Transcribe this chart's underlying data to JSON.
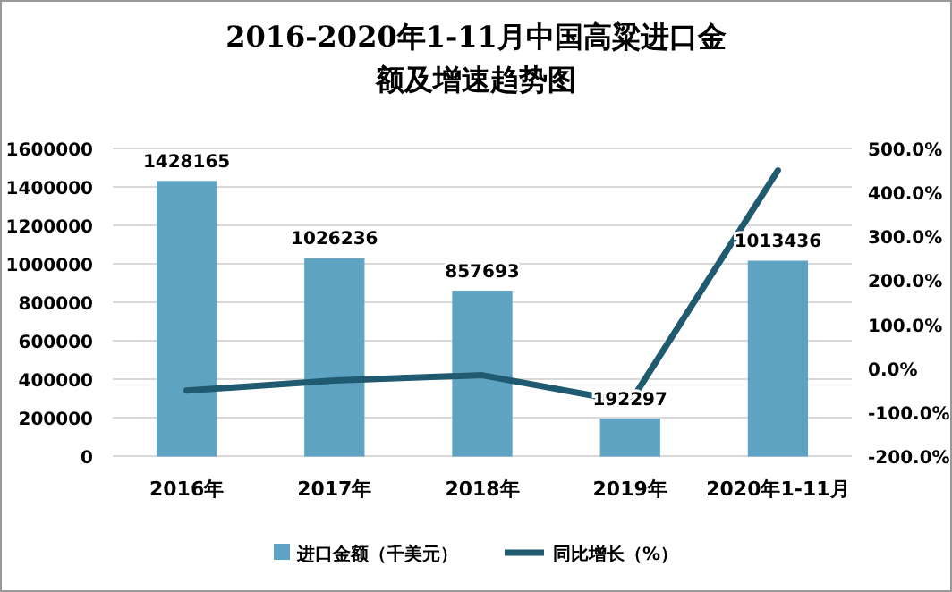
{
  "chart_data": {
    "type": "bar",
    "title": "2016-2020年1-11月中国高粱进口金额及增速趋势图",
    "categories": [
      "2016年",
      "2017年",
      "2018年",
      "2019年",
      "2020年1-11月"
    ],
    "series": [
      {
        "name": "进口金额（千美元）",
        "color": "#5fa3c2",
        "values": [
          1428165,
          1026236,
          857693,
          192297,
          1013436
        ],
        "value_labels": [
          "1428165",
          "1026236",
          "857693",
          "192297",
          "1013436"
        ]
      },
      {
        "name": "同比增长（%）",
        "type": "line",
        "axis": "y2",
        "color": "#1f5a70",
        "values": [
          -51,
          -28,
          -16,
          -78,
          450
        ]
      }
    ],
    "ylim": [
      0,
      1600000
    ],
    "yticks": [
      0,
      200000,
      400000,
      600000,
      800000,
      1000000,
      1200000,
      1400000,
      1600000
    ],
    "y2lim": [
      -200,
      500
    ],
    "y2ticks": [
      {
        "value": -200,
        "label": "-200.0%"
      },
      {
        "value": -100,
        "label": "-100.0%"
      },
      {
        "value": 0,
        "label": "0.0%"
      },
      {
        "value": 100,
        "label": "100.0%"
      },
      {
        "value": 200,
        "label": "200.0%"
      },
      {
        "value": 300,
        "label": "300.0%"
      },
      {
        "value": 400,
        "label": "400.0%"
      },
      {
        "value": 500,
        "label": "500.0%"
      }
    ],
    "grid": "y",
    "legend": "bottom",
    "marker": "none"
  }
}
